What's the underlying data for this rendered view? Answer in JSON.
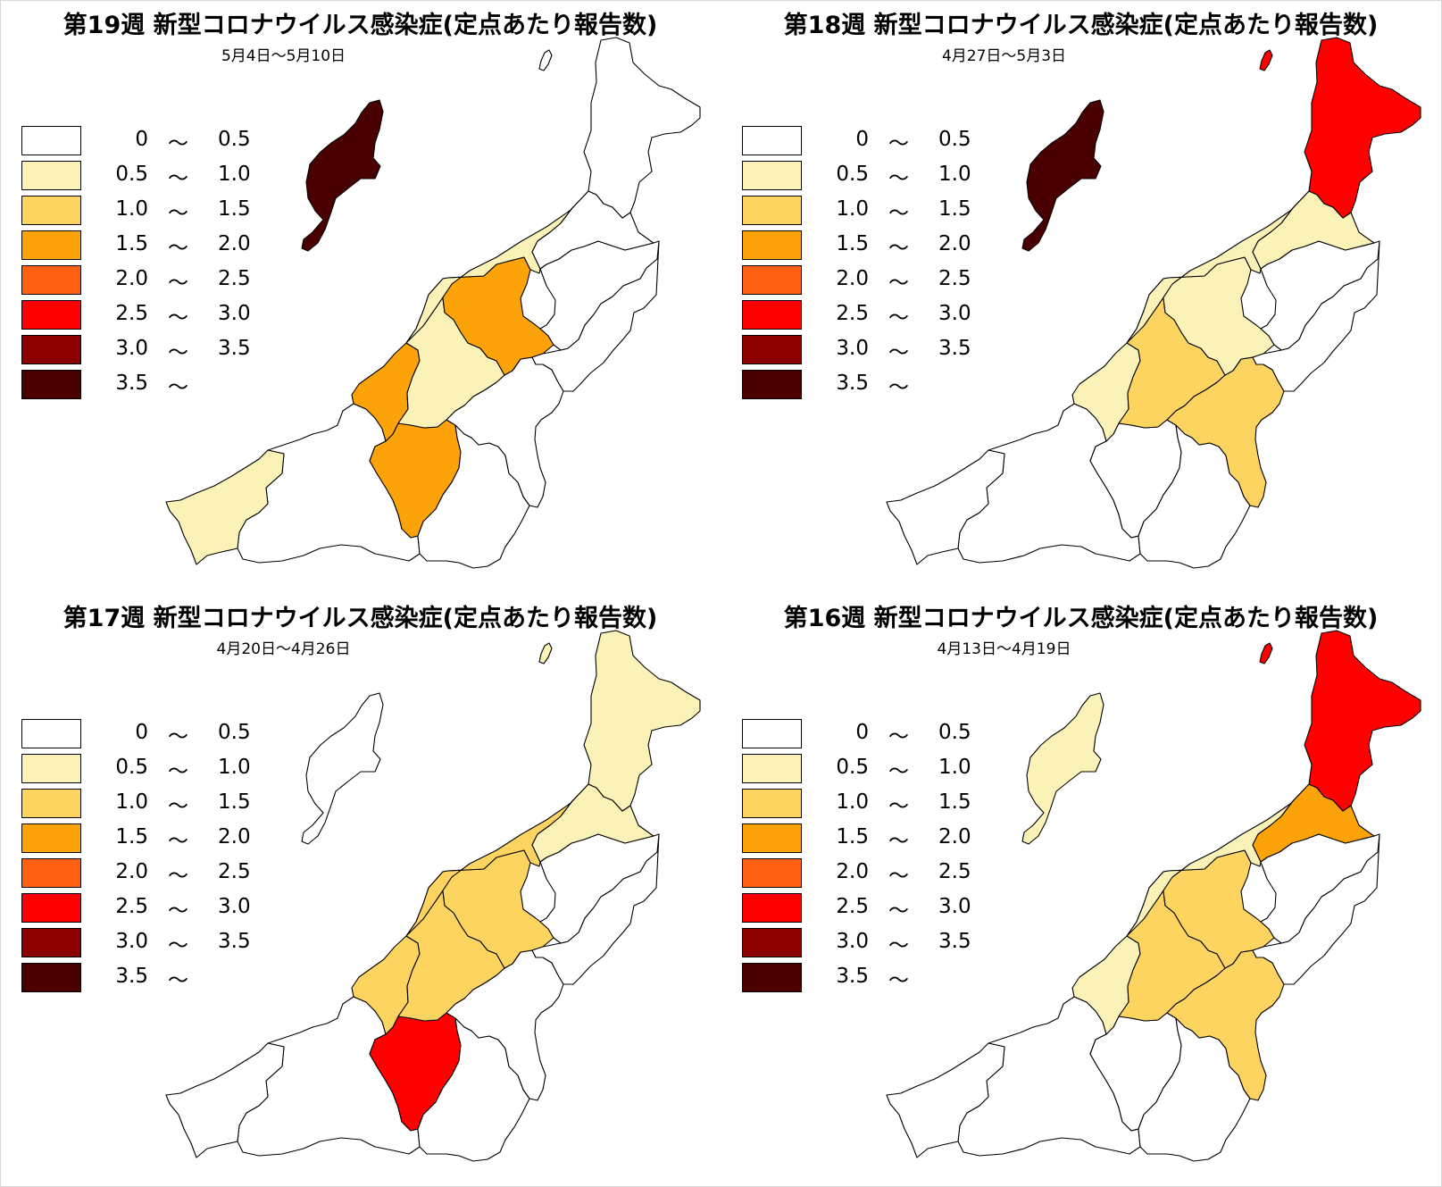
{
  "legend": [
    {
      "lo": "0",
      "hi": "0.5",
      "color": "#ffffff"
    },
    {
      "lo": "0.5",
      "hi": "1.0",
      "color": "#fbf2b8"
    },
    {
      "lo": "1.0",
      "hi": "1.5",
      "color": "#fcd45f"
    },
    {
      "lo": "1.5",
      "hi": "2.0",
      "color": "#fca30a"
    },
    {
      "lo": "2.0",
      "hi": "2.5",
      "color": "#ff6011"
    },
    {
      "lo": "2.5",
      "hi": "3.0",
      "color": "#ff0000"
    },
    {
      "lo": "3.0",
      "hi": "3.5",
      "color": "#8b0000"
    },
    {
      "lo": "3.5",
      "hi": "",
      "color": "#4a0000"
    }
  ],
  "tilde": "〜",
  "panels": [
    {
      "title": "第19週 新型コロナウイルス感染症(定点あたり報告数)",
      "dates": "5月4日〜5月10日",
      "regions": {
        "awashima": "#ffffff",
        "sado": "#4a0000",
        "murakami": "#ffffff",
        "shibata": "#ffffff",
        "niigata_city": "#fbf2b8",
        "east_a": "#ffffff",
        "east_b": "#ffffff",
        "sanjo": "#fca30a",
        "nagaoka": "#fbf2b8",
        "kashiwazaki": "#fca30a",
        "minamiuonuma": "#ffffff",
        "uonuma": "#ffffff",
        "tokamachi": "#fca30a",
        "jouetsu": "#ffffff",
        "itoigawa": "#fbf2b8"
      }
    },
    {
      "title": "第18週 新型コロナウイルス感染症(定点あたり報告数)",
      "dates": "4月27日〜5月3日",
      "regions": {
        "awashima": "#ff0000",
        "sado": "#4a0000",
        "murakami": "#ff0000",
        "shibata": "#fbf2b8",
        "niigata_city": "#fbf2b8",
        "east_a": "#ffffff",
        "east_b": "#ffffff",
        "sanjo": "#fbf2b8",
        "nagaoka": "#fcd45f",
        "kashiwazaki": "#fbf2b8",
        "minamiuonuma": "#fcd45f",
        "uonuma": "#ffffff",
        "tokamachi": "#ffffff",
        "jouetsu": "#ffffff",
        "itoigawa": "#ffffff"
      }
    },
    {
      "title": "第17週 新型コロナウイルス感染症(定点あたり報告数)",
      "dates": "4月20日〜4月26日",
      "regions": {
        "awashima": "#fbf2b8",
        "sado": "#ffffff",
        "murakami": "#fbf2b8",
        "shibata": "#fbf2b8",
        "niigata_city": "#fcd45f",
        "east_a": "#ffffff",
        "east_b": "#ffffff",
        "sanjo": "#fcd45f",
        "nagaoka": "#fcd45f",
        "kashiwazaki": "#fcd45f",
        "minamiuonuma": "#ffffff",
        "uonuma": "#ffffff",
        "tokamachi": "#ff0000",
        "jouetsu": "#ffffff",
        "itoigawa": "#ffffff"
      }
    },
    {
      "title": "第16週 新型コロナウイルス感染症(定点あたり報告数)",
      "dates": "4月13日〜4月19日",
      "regions": {
        "awashima": "#ff0000",
        "sado": "#fbf2b8",
        "murakami": "#ff0000",
        "shibata": "#fca30a",
        "niigata_city": "#fbf2b8",
        "east_a": "#ffffff",
        "east_b": "#ffffff",
        "sanjo": "#fcd45f",
        "nagaoka": "#fcd45f",
        "kashiwazaki": "#fbf2b8",
        "minamiuonuma": "#fcd45f",
        "uonuma": "#ffffff",
        "tokamachi": "#ffffff",
        "jouetsu": "#ffffff",
        "itoigawa": "#ffffff"
      }
    }
  ]
}
